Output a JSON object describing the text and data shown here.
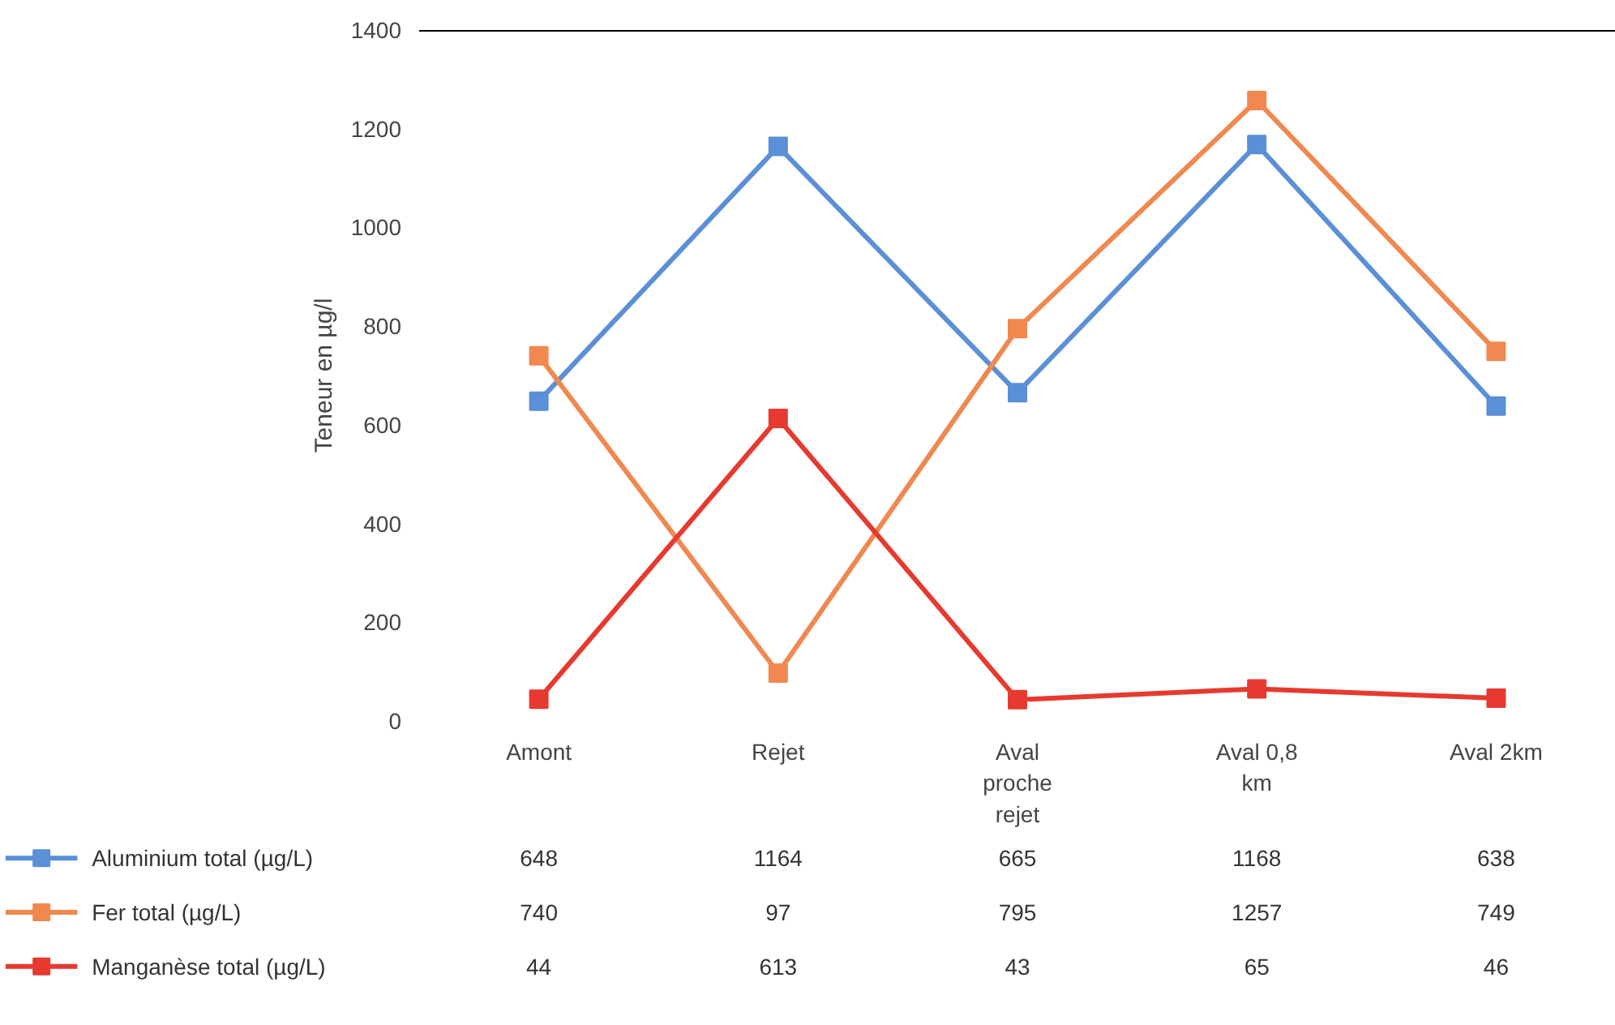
{
  "chart_data": {
    "type": "line",
    "ylabel": "Teneur en µg/l",
    "categories": [
      "Amont",
      "Rejet",
      "Aval proche rejet",
      "Aval 0,8 km",
      "Aval 2km"
    ],
    "series": [
      {
        "name": "Aluminium total (µg/L)",
        "color": "#5b8fd6",
        "values": [
          648,
          1164,
          665,
          1168,
          638
        ]
      },
      {
        "name": "Fer total (µg/L)",
        "color": "#f0884f",
        "values": [
          740,
          97,
          795,
          1257,
          749
        ]
      },
      {
        "name": "Manganèse total (µg/L)",
        "color": "#e63a30",
        "values": [
          44,
          613,
          43,
          65,
          46
        ]
      }
    ],
    "ylim": [
      0,
      1400
    ],
    "yticks": [
      0,
      200,
      400,
      600,
      800,
      1000,
      1200,
      1400
    ],
    "grid": false,
    "marker": "square",
    "line_style": "solid",
    "data_labels": true,
    "legend": "bottom"
  }
}
